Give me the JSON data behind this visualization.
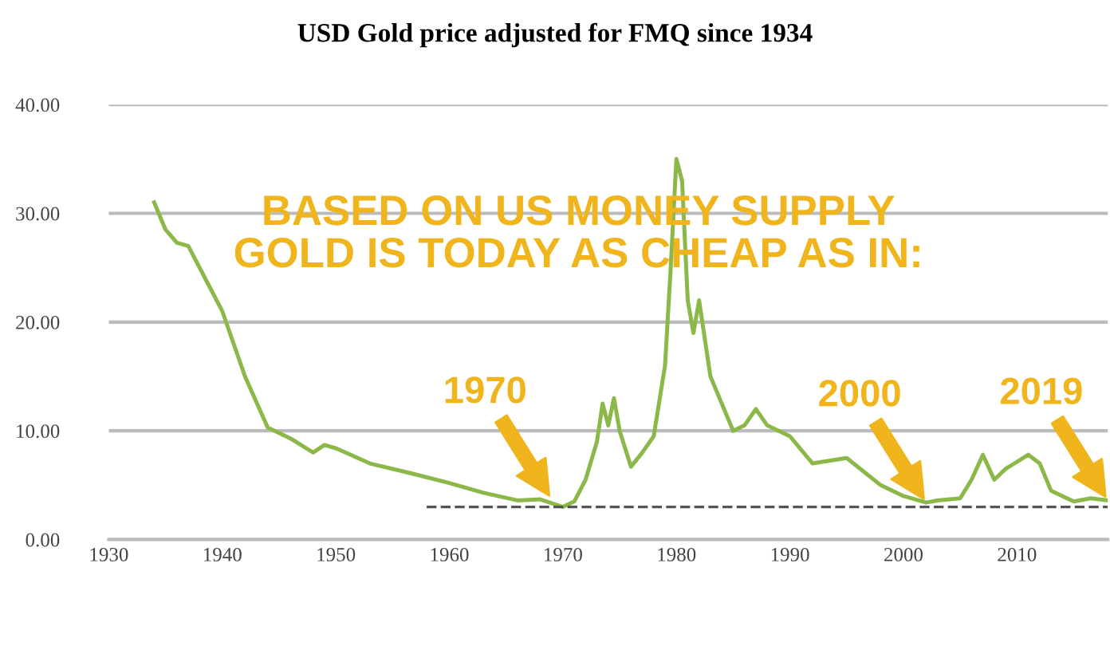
{
  "chart_data": {
    "type": "line",
    "title": "USD Gold price adjusted for FMQ since 1934",
    "xlim": [
      1930,
      2018
    ],
    "xticks": [
      1930,
      1940,
      1950,
      1960,
      1970,
      1980,
      1990,
      2000,
      2010
    ],
    "ylim": [
      0,
      40
    ],
    "yticks": [
      {
        "value": 0,
        "label": "0.00"
      },
      {
        "value": 10,
        "label": "10.00"
      },
      {
        "value": 20,
        "label": "20.00"
      },
      {
        "value": 30,
        "label": "30.00"
      },
      {
        "value": 40,
        "label": "40.00"
      }
    ],
    "grid": "y",
    "legend": false,
    "series": [
      {
        "color": "#8cb84a",
        "x": [
          1934,
          1935,
          1936,
          1937,
          1938,
          1940,
          1942,
          1944,
          1946,
          1948,
          1949,
          1950,
          1953,
          1957,
          1960,
          1963,
          1966,
          1968,
          1970,
          1971,
          1972,
          1973,
          1973.5,
          1974,
          1974.5,
          1975,
          1976,
          1977,
          1978,
          1979,
          1979.5,
          1980,
          1980.5,
          1981,
          1981.5,
          1982,
          1983,
          1984,
          1985,
          1986,
          1987,
          1988,
          1990,
          1992,
          1995,
          1998,
          2000,
          2002,
          2003,
          2005,
          2006,
          2007,
          2008,
          2009,
          2011,
          2012,
          2013,
          2015,
          2016.5,
          2018
        ],
        "values": [
          31,
          28.5,
          27.3,
          27,
          25,
          21,
          15,
          10.3,
          9.3,
          8,
          8.7,
          8.4,
          7,
          6,
          5.2,
          4.3,
          3.6,
          3.7,
          3,
          3.5,
          5.5,
          9,
          12.5,
          10.5,
          13,
          10,
          6.7,
          8,
          9.5,
          16,
          25,
          35,
          33,
          22,
          19,
          22,
          15,
          12.5,
          10,
          10.5,
          12,
          10.5,
          9.5,
          7,
          7.5,
          5,
          4,
          3.4,
          3.6,
          3.8,
          5.5,
          7.8,
          5.5,
          6.5,
          7.8,
          7,
          4.5,
          3.5,
          3.8,
          3.6
        ]
      },
      {
        "color": "#555555",
        "line_style": "dashed",
        "x": [
          1958,
          2018
        ],
        "values": [
          3,
          3
        ]
      }
    ],
    "annotations": [
      "BASED ON US MONEY SUPPLY\nGOLD IS TODAY AS CHEAP AS IN:",
      {
        "text": "1970",
        "x": 1969,
        "y": 3.7
      },
      {
        "text": "2000",
        "x": 2002,
        "y": 3.4
      },
      {
        "text": "2019",
        "x": 2018,
        "y": 3.6
      }
    ]
  }
}
